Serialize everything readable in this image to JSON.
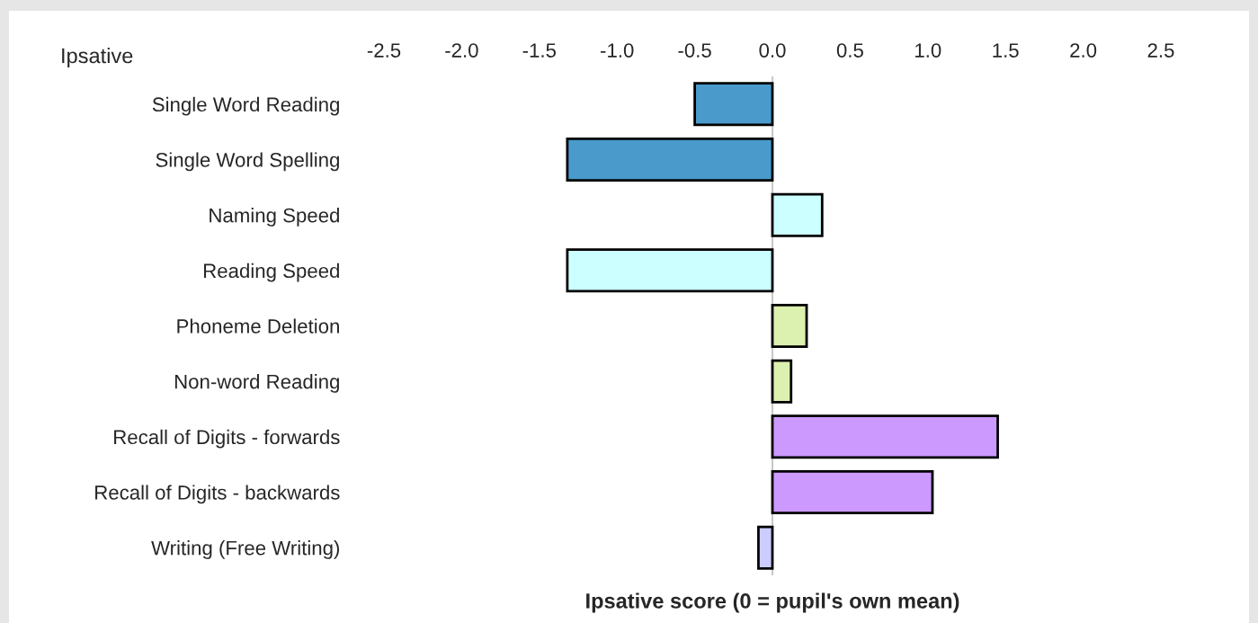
{
  "chart_data": {
    "type": "bar",
    "orientation": "horizontal",
    "categories": [
      "Single Word Reading",
      "Single Word Spelling",
      "Naming Speed",
      "Reading Speed",
      "Phoneme Deletion",
      "Non-word Reading",
      "Recall of Digits - forwards",
      "Recall of Digits - backwards",
      "Writing (Free Writing)"
    ],
    "values": [
      -0.5,
      -1.32,
      0.32,
      -1.32,
      0.22,
      0.12,
      1.45,
      1.03,
      -0.09
    ],
    "colors": [
      "#4a9bcb",
      "#4a9bcb",
      "#ccffff",
      "#ccffff",
      "#dcf0b0",
      "#dcf0b0",
      "#cc99ff",
      "#cc99ff",
      "#ccccff"
    ],
    "xlim": [
      -2.5,
      2.5
    ],
    "xticks": [
      -2.5,
      {
        "value": -2,
        "label": "-2.0"
      },
      -1.5,
      {
        "value": -1,
        "label": "-1.0"
      },
      -0.5,
      {
        "value": 0,
        "label": "0.0"
      },
      0.5,
      {
        "value": 1,
        "label": "1.0"
      },
      1.5,
      {
        "value": 2,
        "label": "2.0"
      },
      2.5
    ],
    "xlabel": "Ipsative score (0 = pupil's own mean)",
    "annotations": [
      "Ipsative"
    ],
    "ref_lines": [
      {
        "axis": "x",
        "value": 0,
        "color": "#c8c8c8"
      }
    ],
    "grid": false
  }
}
